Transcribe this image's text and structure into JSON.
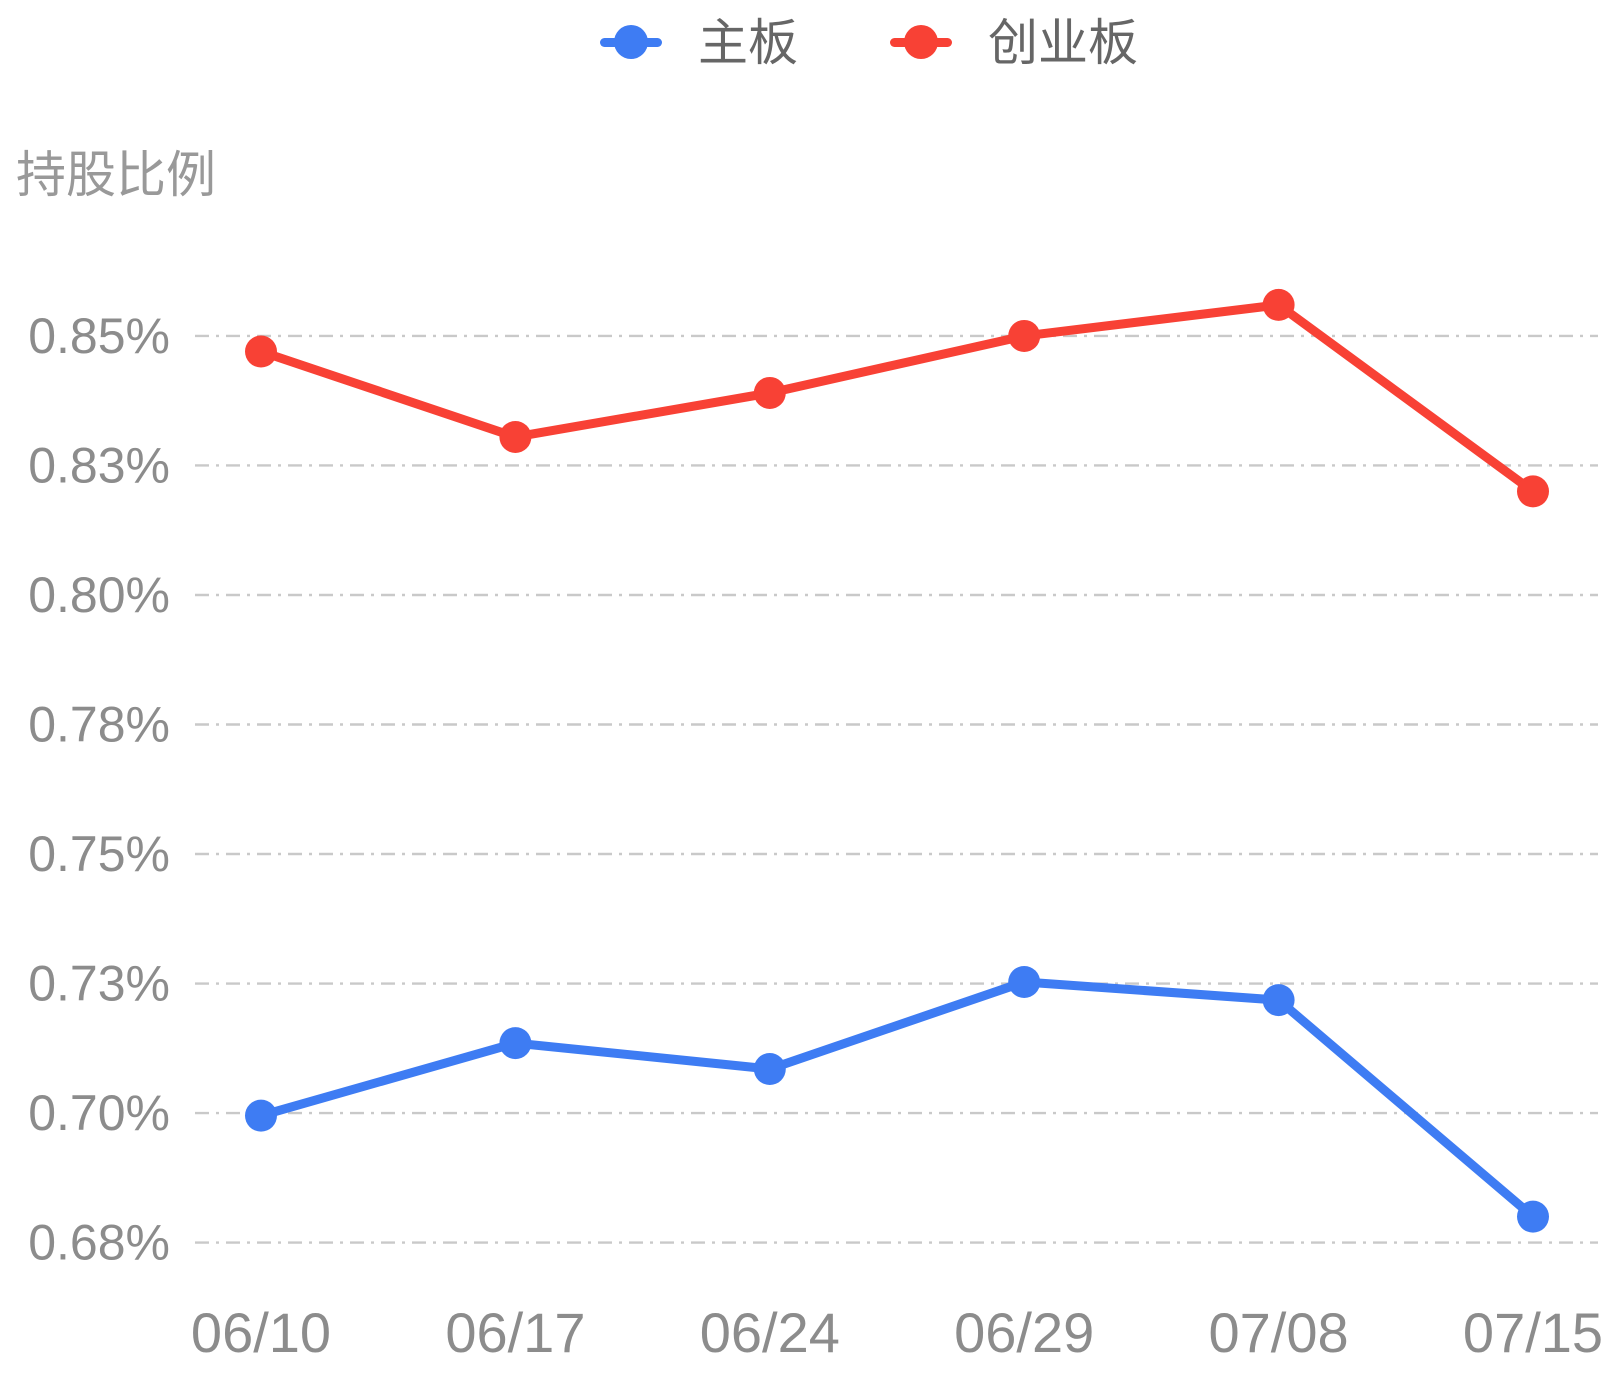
{
  "chart_data": {
    "type": "line",
    "title": "",
    "ylabel": "持股比例",
    "xlabel": "",
    "legend_position": "top",
    "grid": true,
    "unit": "%",
    "x_categories": [
      "06/10",
      "06/17",
      "06/24",
      "06/29",
      "07/08",
      "07/15"
    ],
    "series": [
      {
        "key": "main-board",
        "name": "主板",
        "color": "#3E7CF3",
        "values": [
          0.6995,
          0.7135,
          0.7085,
          0.7253,
          0.7218,
          0.68
        ]
      },
      {
        "key": "chinext",
        "name": "创业板",
        "color": "#F84135",
        "values": [
          0.847,
          0.8305,
          0.839,
          0.85,
          0.856,
          0.82
        ]
      }
    ],
    "y_ticks": [
      {
        "label": "0.85%",
        "value": 0.85
      },
      {
        "label": "0.83%",
        "value": 0.825
      },
      {
        "label": "0.80%",
        "value": 0.8
      },
      {
        "label": "0.78%",
        "value": 0.775
      },
      {
        "label": "0.75%",
        "value": 0.75
      },
      {
        "label": "0.73%",
        "value": 0.725
      },
      {
        "label": "0.70%",
        "value": 0.7
      },
      {
        "label": "0.68%",
        "value": 0.675
      }
    ],
    "ylim": [
      0.6725,
      0.8775
    ]
  },
  "styles": {
    "grid_color": "#C9C9C9",
    "tick_label_color": "#8C8C8C",
    "legend_text_color": "#666666",
    "axis_title_color": "#999999",
    "background": "#FFFFFF"
  }
}
